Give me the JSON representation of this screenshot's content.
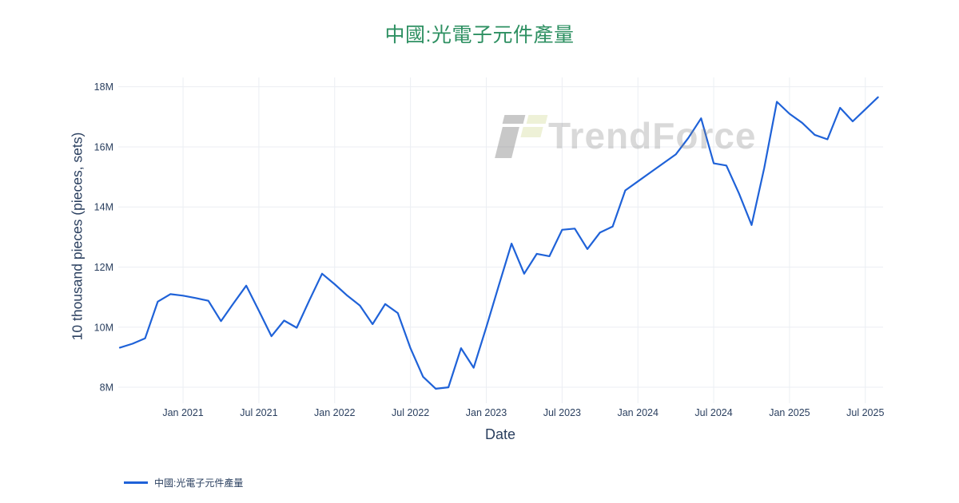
{
  "title": {
    "text": "中國:光電子元件產量"
  },
  "watermark": {
    "text": "TrendForce"
  },
  "colors": {
    "line": "#1f62d8",
    "title": "#2e9062",
    "axis_text": "#2a3f5f",
    "grid": "#ebeef3"
  },
  "legend": {
    "series_label": "中國:光電子元件產量"
  },
  "chart_data": {
    "type": "line",
    "title": "中國:光電子元件產量",
    "xlabel": "Date",
    "ylabel": "10 thousand pieces (pieces, sets)",
    "legend_position": "bottom-left",
    "grid": true,
    "ylim": [
      7.47,
      18.31
    ],
    "x_index_range": [
      -0.127,
      60.405
    ],
    "x": [
      "2020-08",
      "2020-09",
      "2020-10",
      "2020-11",
      "2020-12",
      "2021-01",
      "2021-02",
      "2021-03",
      "2021-04",
      "2021-05",
      "2021-06",
      "2021-07",
      "2021-08",
      "2021-09",
      "2021-10",
      "2021-11",
      "2021-12",
      "2022-01",
      "2022-02",
      "2022-03",
      "2022-04",
      "2022-05",
      "2022-06",
      "2022-07",
      "2022-08",
      "2022-09",
      "2022-10",
      "2022-11",
      "2022-12",
      "2023-01",
      "2023-02",
      "2023-03",
      "2023-04",
      "2023-05",
      "2023-06",
      "2023-07",
      "2023-08",
      "2023-09",
      "2023-10",
      "2023-11",
      "2023-12",
      "2024-01",
      "2024-02",
      "2024-03",
      "2024-04",
      "2024-05",
      "2024-06",
      "2024-07",
      "2024-08",
      "2024-09",
      "2024-10",
      "2024-11",
      "2024-12",
      "2025-01",
      "2025-02",
      "2025-03",
      "2025-04",
      "2025-05",
      "2025-06",
      "2025-07",
      "2025-08"
    ],
    "values": [
      9.32,
      9.45,
      9.63,
      10.85,
      11.1,
      11.05,
      10.97,
      10.88,
      10.2,
      10.8,
      11.38,
      10.55,
      9.7,
      10.22,
      9.98,
      10.9,
      11.78,
      11.43,
      11.05,
      10.72,
      10.1,
      10.77,
      10.47,
      9.3,
      8.35,
      7.95,
      8.0,
      9.3,
      8.65,
      10.0,
      11.4,
      12.78,
      11.78,
      12.44,
      12.36,
      13.24,
      13.28,
      12.6,
      13.15,
      13.35,
      14.55,
      14.85,
      15.15,
      15.45,
      15.75,
      16.3,
      16.95,
      15.45,
      15.38,
      14.45,
      13.4,
      15.3,
      17.5,
      17.1,
      16.8,
      16.4,
      16.25,
      17.3,
      16.85,
      17.25,
      17.65
    ],
    "x_ticks": {
      "indices": [
        5,
        11,
        17,
        23,
        29,
        35,
        41,
        47,
        53,
        59
      ],
      "labels": [
        "Jan 2021",
        "Jul 2021",
        "Jan 2022",
        "Jul 2022",
        "Jan 2023",
        "Jul 2023",
        "Jan 2024",
        "Jul 2024",
        "Jan 2025",
        "Jul 2025"
      ]
    },
    "y_ticks": {
      "values": [
        8,
        10,
        12,
        14,
        16,
        18
      ],
      "labels": [
        "8M",
        "10M",
        "12M",
        "14M",
        "16M",
        "18M"
      ]
    },
    "series": [
      {
        "name": "中國:光電子元件產量",
        "color": "#1f62d8"
      }
    ]
  }
}
